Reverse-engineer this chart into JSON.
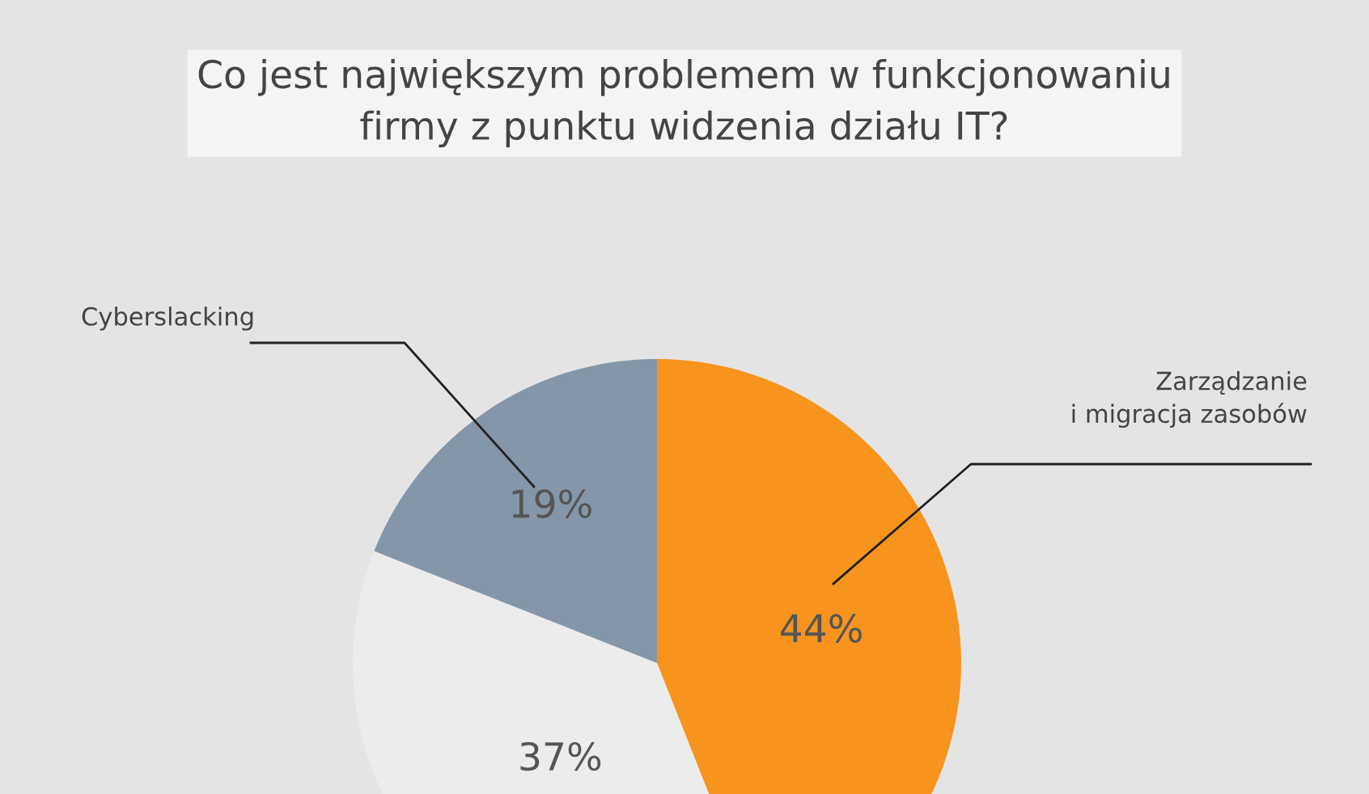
{
  "chart_data": {
    "type": "pie",
    "title": "Co jest największym problemem w funkcjonowaniu\nfirmy z punktu widzenia działu IT?",
    "categories": [
      "Zarządzanie\ni migracja zasobów",
      null,
      "Cyberslacking"
    ],
    "values": [
      44,
      37,
      19
    ],
    "value_labels": [
      "44%",
      "37%",
      "19%"
    ],
    "colors": [
      "#f7941d",
      "#ececec",
      "#8497a8"
    ],
    "legend": false
  }
}
